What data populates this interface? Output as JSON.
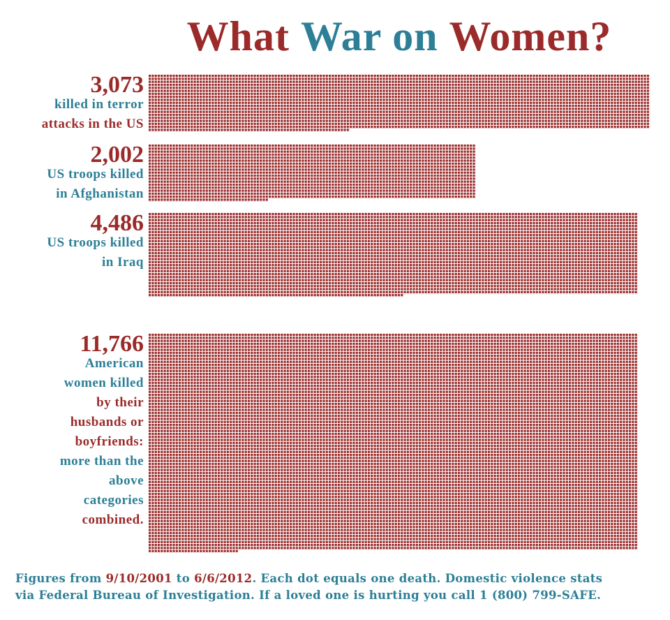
{
  "chart_data": {
    "type": "waffle",
    "title": [
      {
        "text": "What",
        "color": "#9b2a2a"
      },
      {
        "text": "War",
        "color": "#2c7f96"
      },
      {
        "text": "on",
        "color": "#2c7f96"
      },
      {
        "text": "Women?",
        "color": "#9b2a2a"
      }
    ],
    "dot_color": "#9b2a2a",
    "categories": [
      {
        "value_label": "3,073",
        "lines": [
          {
            "text": "killed in terror",
            "color": "#2c7f96"
          },
          {
            "text": "attacks in the US",
            "color": "#9b2a2a"
          }
        ]
      },
      {
        "value_label": "2,002",
        "lines": [
          {
            "text": "US troops killed",
            "color": "#2c7f96"
          },
          {
            "text": "in Afghanistan",
            "color": "#2c7f96"
          }
        ]
      },
      {
        "value_label": "4,486",
        "lines": [
          {
            "text": "US troops killed",
            "color": "#2c7f96"
          },
          {
            "text": "in Iraq",
            "color": "#2c7f96"
          }
        ]
      },
      {
        "value_label": "11,766",
        "lines": [
          {
            "text": "American",
            "color": "#2c7f96"
          },
          {
            "text": "women killed",
            "color": "#2c7f96"
          },
          {
            "text": "by their",
            "color": "#9b2a2a"
          },
          {
            "text": "husbands or",
            "color": "#9b2a2a"
          },
          {
            "text": "boyfriends:",
            "color": "#9b2a2a"
          },
          {
            "text": "more than the",
            "color": "#2c7f96"
          },
          {
            "text": "above",
            "color": "#2c7f96"
          },
          {
            "text": "categories",
            "color": "#2c7f96"
          },
          {
            "text": "combined.",
            "color": "#9b2a2a"
          }
        ]
      }
    ],
    "values": [
      3073,
      2002,
      4486,
      11766
    ],
    "footer": [
      [
        {
          "text": "Figures from ",
          "color": "#2c7f96"
        },
        {
          "text": "9/10/2001",
          "color": "#9b2a2a"
        },
        {
          "text": " to ",
          "color": "#2c7f96"
        },
        {
          "text": "6/6/2012",
          "color": "#9b2a2a"
        },
        {
          "text": ". Each dot equals one death. Domestic violence stats",
          "color": "#2c7f96"
        }
      ],
      [
        {
          "text": "via Federal Bureau of Investigation. If a loved one is hurting you call 1 (800) 799-SAFE.",
          "color": "#2c7f96"
        }
      ]
    ]
  }
}
